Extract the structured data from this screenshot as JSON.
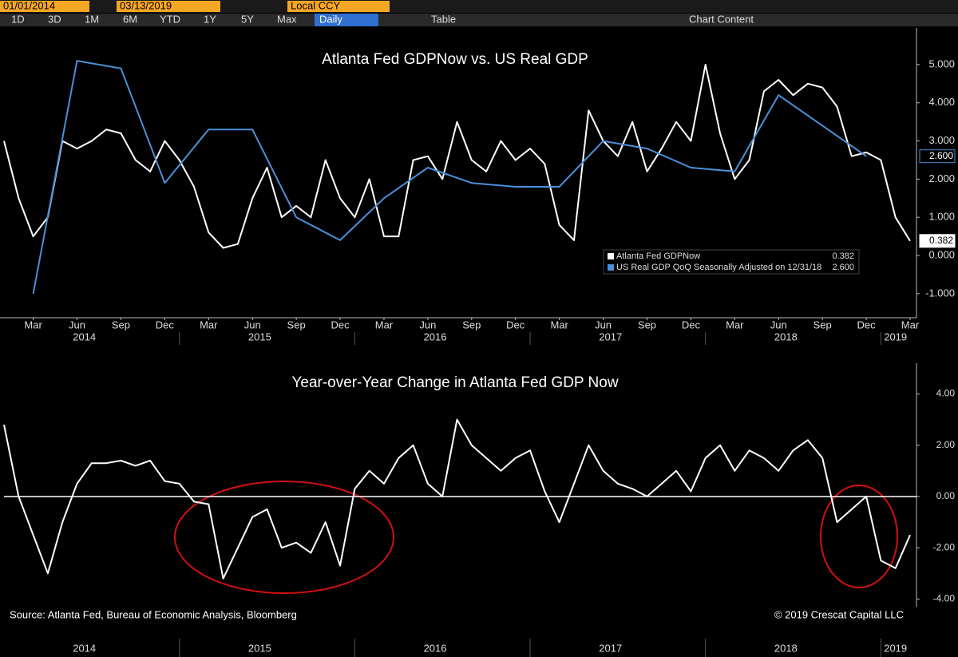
{
  "toolbar": {
    "start_date": "01/01/2014",
    "end_date": "03/13/2019",
    "currency": "Local CCY",
    "ranges": [
      "1D",
      "3D",
      "1M",
      "6M",
      "YTD",
      "1Y",
      "5Y",
      "Max"
    ],
    "frequency": "Daily",
    "table": "Table",
    "content": "Chart Content"
  },
  "chart_data": [
    {
      "type": "line",
      "title": "Atlanta Fed GDPNow vs. US Real GDP",
      "xlim": [
        "2014-01",
        "2019-03"
      ],
      "ylim": [
        -1.63,
        5.96
      ],
      "yticks": [
        {
          "value": -1,
          "label": "-1.000"
        },
        {
          "value": 0,
          "label": "0.000"
        },
        {
          "value": 1,
          "label": "1.000"
        },
        {
          "value": 2,
          "label": "2.000"
        },
        {
          "value": 3,
          "label": "3.000"
        },
        {
          "value": 4,
          "label": "4.000"
        },
        {
          "value": 5,
          "label": "5.000"
        }
      ],
      "xticks": [
        {
          "value": "2014-03",
          "label": "Mar"
        },
        {
          "value": "2014-06",
          "label": "Jun"
        },
        {
          "value": "2014-09",
          "label": "Sep"
        },
        {
          "value": "2014-12",
          "label": "Dec"
        },
        {
          "value": "2015-03",
          "label": "Mar"
        },
        {
          "value": "2015-06",
          "label": "Jun"
        },
        {
          "value": "2015-09",
          "label": "Sep"
        },
        {
          "value": "2015-12",
          "label": "Dec"
        },
        {
          "value": "2016-03",
          "label": "Mar"
        },
        {
          "value": "2016-06",
          "label": "Jun"
        },
        {
          "value": "2016-09",
          "label": "Sep"
        },
        {
          "value": "2016-12",
          "label": "Dec"
        },
        {
          "value": "2017-03",
          "label": "Mar"
        },
        {
          "value": "2017-06",
          "label": "Jun"
        },
        {
          "value": "2017-09",
          "label": "Sep"
        },
        {
          "value": "2017-12",
          "label": "Dec"
        },
        {
          "value": "2018-03",
          "label": "Mar"
        },
        {
          "value": "2018-06",
          "label": "Jun"
        },
        {
          "value": "2018-09",
          "label": "Sep"
        },
        {
          "value": "2018-12",
          "label": "Dec"
        },
        {
          "value": "2019-03",
          "label": "Mar"
        }
      ],
      "x_years": [
        "2014",
        "2015",
        "2016",
        "2017",
        "2018",
        "2019"
      ],
      "series": [
        {
          "name": "Atlanta Fed GDPNow",
          "color": "#ffffff",
          "tag": "0.382",
          "x": [
            "2014-01",
            "2014-02",
            "2014-03",
            "2014-04",
            "2014-05",
            "2014-06",
            "2014-07",
            "2014-08",
            "2014-09",
            "2014-10",
            "2014-11",
            "2014-12",
            "2015-01",
            "2015-02",
            "2015-03",
            "2015-04",
            "2015-05",
            "2015-06",
            "2015-07",
            "2015-08",
            "2015-09",
            "2015-10",
            "2015-11",
            "2015-12",
            "2016-01",
            "2016-02",
            "2016-03",
            "2016-04",
            "2016-05",
            "2016-06",
            "2016-07",
            "2016-08",
            "2016-09",
            "2016-10",
            "2016-11",
            "2016-12",
            "2017-01",
            "2017-02",
            "2017-03",
            "2017-04",
            "2017-05",
            "2017-06",
            "2017-07",
            "2017-08",
            "2017-09",
            "2017-10",
            "2017-11",
            "2017-12",
            "2018-01",
            "2018-02",
            "2018-03",
            "2018-04",
            "2018-05",
            "2018-06",
            "2018-07",
            "2018-08",
            "2018-09",
            "2018-10",
            "2018-11",
            "2018-12",
            "2019-01",
            "2019-02",
            "2019-03"
          ],
          "values": [
            3.0,
            1.5,
            0.5,
            1.0,
            3.0,
            2.8,
            3.0,
            3.3,
            3.2,
            2.5,
            2.2,
            3.0,
            2.5,
            1.8,
            0.6,
            0.2,
            0.3,
            1.5,
            2.3,
            1.0,
            1.3,
            1.0,
            2.5,
            1.5,
            1.0,
            2.0,
            0.5,
            0.5,
            2.5,
            2.6,
            2.0,
            3.5,
            2.5,
            2.2,
            3.0,
            2.5,
            2.8,
            2.4,
            0.8,
            0.4,
            3.8,
            3.0,
            2.6,
            3.5,
            2.2,
            2.8,
            3.5,
            3.0,
            5.0,
            3.2,
            2.0,
            2.5,
            4.3,
            4.6,
            4.2,
            4.5,
            4.4,
            3.9,
            2.6,
            2.7,
            2.5,
            1.0,
            0.382
          ]
        },
        {
          "name": "US Real GDP QoQ Seasonally Adjusted on 12/31/18",
          "color": "#4a90d9",
          "tag": "2.600",
          "x": [
            "2014-03",
            "2014-06",
            "2014-09",
            "2014-12",
            "2015-03",
            "2015-06",
            "2015-09",
            "2015-12",
            "2016-03",
            "2016-06",
            "2016-09",
            "2016-12",
            "2017-03",
            "2017-06",
            "2017-09",
            "2017-12",
            "2018-03",
            "2018-06",
            "2018-09",
            "2018-12"
          ],
          "values": [
            -1.0,
            5.1,
            4.9,
            1.9,
            3.3,
            3.3,
            1.0,
            0.4,
            1.5,
            2.3,
            1.9,
            1.8,
            1.8,
            3.0,
            2.8,
            2.3,
            2.2,
            4.2,
            3.4,
            2.6
          ]
        }
      ]
    },
    {
      "type": "line",
      "title": "Year-over-Year Change in Atlanta Fed GDP Now",
      "xlim": [
        "2014-01",
        "2019-03"
      ],
      "ylim": [
        -4.3,
        5.2
      ],
      "yticks": [
        {
          "value": -4,
          "label": "-4.00"
        },
        {
          "value": -2,
          "label": "-2.00"
        },
        {
          "value": 0,
          "label": "0.00"
        },
        {
          "value": 2,
          "label": "2.00"
        },
        {
          "value": 4,
          "label": "4.00"
        }
      ],
      "x_years": [
        "2014",
        "2015",
        "2016",
        "2017",
        "2018",
        "2019"
      ],
      "source": "Source: Atlanta Fed, Bureau of Economic Analysis, Bloomberg",
      "copyright": "© 2019 Crescat Capital LLC",
      "series": [
        {
          "color": "#ffffff",
          "x": [
            "2014-01",
            "2014-02",
            "2014-03",
            "2014-04",
            "2014-05",
            "2014-06",
            "2014-07",
            "2014-08",
            "2014-09",
            "2014-10",
            "2014-11",
            "2014-12",
            "2015-01",
            "2015-02",
            "2015-03",
            "2015-04",
            "2015-05",
            "2015-06",
            "2015-07",
            "2015-08",
            "2015-09",
            "2015-10",
            "2015-11",
            "2015-12",
            "2016-01",
            "2016-02",
            "2016-03",
            "2016-04",
            "2016-05",
            "2016-06",
            "2016-07",
            "2016-08",
            "2016-09",
            "2016-10",
            "2016-11",
            "2016-12",
            "2017-01",
            "2017-02",
            "2017-03",
            "2017-04",
            "2017-05",
            "2017-06",
            "2017-07",
            "2017-08",
            "2017-09",
            "2017-10",
            "2017-11",
            "2017-12",
            "2018-01",
            "2018-02",
            "2018-03",
            "2018-04",
            "2018-05",
            "2018-06",
            "2018-07",
            "2018-08",
            "2018-09",
            "2018-10",
            "2018-11",
            "2018-12",
            "2019-01",
            "2019-02",
            "2019-03"
          ],
          "values": [
            2.8,
            0.0,
            -1.5,
            -3.0,
            -1.0,
            0.5,
            1.3,
            1.3,
            1.4,
            1.2,
            1.4,
            0.6,
            0.5,
            -0.2,
            -0.3,
            -3.2,
            -2.0,
            -0.8,
            -0.5,
            -2.0,
            -1.8,
            -2.2,
            -1.0,
            -2.7,
            0.3,
            1.0,
            0.5,
            1.5,
            2.0,
            0.5,
            0.0,
            3.0,
            2.0,
            1.5,
            1.0,
            1.5,
            1.8,
            0.2,
            -1.0,
            0.5,
            2.0,
            1.0,
            0.5,
            0.3,
            0.0,
            0.5,
            1.0,
            0.2,
            1.5,
            2.0,
            1.0,
            1.8,
            1.5,
            1.0,
            1.8,
            2.2,
            1.5,
            -1.0,
            -0.5,
            0.0,
            -2.5,
            -2.8,
            -1.5
          ]
        }
      ]
    }
  ]
}
